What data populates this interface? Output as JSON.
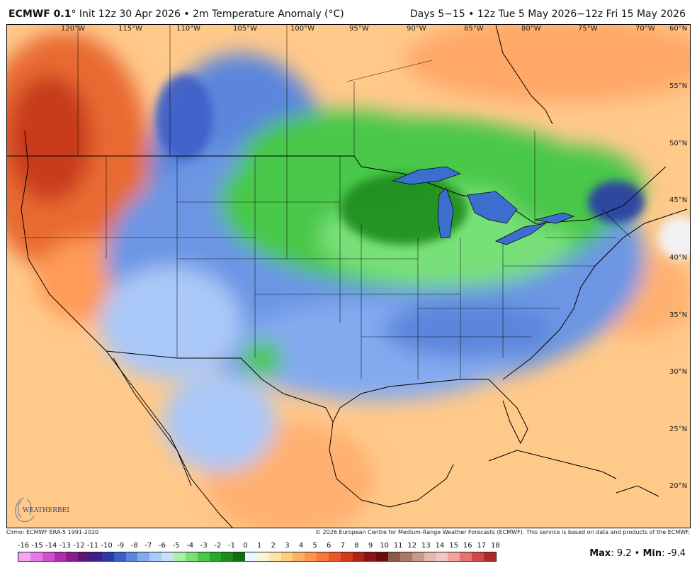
{
  "header": {
    "model": "ECMWF 0.1",
    "init": "° Init 12z 30 Apr 2026 • 2m Temperature Anomaly (°C)",
    "valid": "Days 5−15 • 12z Tue 5 May 2026−12z Fri 15 May 2026"
  },
  "lon_labels": [
    "120°W",
    "115°W",
    "110°W",
    "105°W",
    "100°W",
    "95°W",
    "90°W",
    "85°W",
    "80°W",
    "75°W",
    "70°W"
  ],
  "lat_labels": [
    "60°N",
    "55°N",
    "50°N",
    "45°N",
    "40°N",
    "35°N",
    "30°N",
    "25°N",
    "20°N"
  ],
  "footer": {
    "climo": "Climo: ECMWF ERA-5 1991-2020",
    "copyright": "© 2026 European Centre for Medium-Range Weather Forecasts (ECMWF). This service is based on data and products of the ECMWF."
  },
  "logo_text": "WEATHERBELL",
  "colorbar": {
    "ticks": [
      "-16",
      "-15",
      "-14",
      "-13",
      "-12",
      "-11",
      "-10",
      "-9",
      "-8",
      "-7",
      "-6",
      "-5",
      "-4",
      "-3",
      "-2",
      "-1",
      "0",
      "1",
      "2",
      "3",
      "4",
      "5",
      "6",
      "7",
      "8",
      "9",
      "10",
      "11",
      "12",
      "13",
      "14",
      "15",
      "16",
      "17",
      "18"
    ],
    "colors": [
      "#f4a6f4",
      "#e57ae5",
      "#d04fd0",
      "#b22bb2",
      "#8c1a8c",
      "#5e1572",
      "#3b1e8c",
      "#2c3aa8",
      "#3c5ec8",
      "#5c86dc",
      "#84aaf0",
      "#aac8f8",
      "#cce0fc",
      "#a8f0a8",
      "#78e078",
      "#48c848",
      "#28a828",
      "#1c8c1c",
      "#106c10",
      "#e8f8ff",
      "#fff4d0",
      "#ffe4a8",
      "#ffcc80",
      "#ffb060",
      "#ff9448",
      "#f87838",
      "#e85828",
      "#d03c1c",
      "#b02414",
      "#8c1410",
      "#6c0c0c",
      "#8c5a4a",
      "#a87868",
      "#c89888",
      "#e8b8b0",
      "#f0c8c8",
      "#f4a0a0",
      "#e87070",
      "#d04848",
      "#b02828"
    ]
  },
  "stats": {
    "max_label": "Max",
    "max_value": ": 9.2 • ",
    "min_label": "Min",
    "min_value": ": -9.4"
  }
}
